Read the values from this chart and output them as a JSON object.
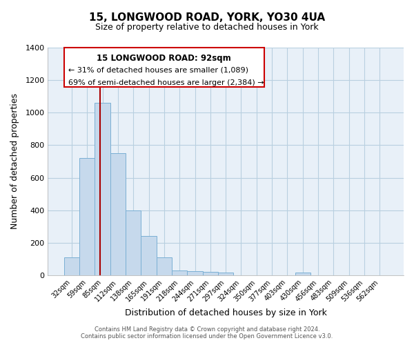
{
  "title": "15, LONGWOOD ROAD, YORK, YO30 4UA",
  "subtitle": "Size of property relative to detached houses in York",
  "xlabel": "Distribution of detached houses by size in York",
  "ylabel": "Number of detached properties",
  "bar_labels": [
    "32sqm",
    "59sqm",
    "85sqm",
    "112sqm",
    "138sqm",
    "165sqm",
    "191sqm",
    "218sqm",
    "244sqm",
    "271sqm",
    "297sqm",
    "324sqm",
    "350sqm",
    "377sqm",
    "403sqm",
    "430sqm",
    "456sqm",
    "483sqm",
    "509sqm",
    "536sqm",
    "562sqm"
  ],
  "bar_values": [
    110,
    720,
    1060,
    750,
    400,
    240,
    110,
    30,
    25,
    20,
    15,
    0,
    0,
    0,
    0,
    15,
    0,
    0,
    0,
    0,
    0
  ],
  "bar_color": "#c6d9ec",
  "bar_edge_color": "#7aafd4",
  "plot_bg_color": "#e8f0f8",
  "ylim": [
    0,
    1400
  ],
  "yticks": [
    0,
    200,
    400,
    600,
    800,
    1000,
    1200,
    1400
  ],
  "vline_color": "#aa0000",
  "annotation_title": "15 LONGWOOD ROAD: 92sqm",
  "annotation_line1": "← 31% of detached houses are smaller (1,089)",
  "annotation_line2": "69% of semi-detached houses are larger (2,384) →",
  "footer1": "Contains HM Land Registry data © Crown copyright and database right 2024.",
  "footer2": "Contains public sector information licensed under the Open Government Licence v3.0.",
  "background_color": "#ffffff",
  "grid_color": "#b8cfe0"
}
